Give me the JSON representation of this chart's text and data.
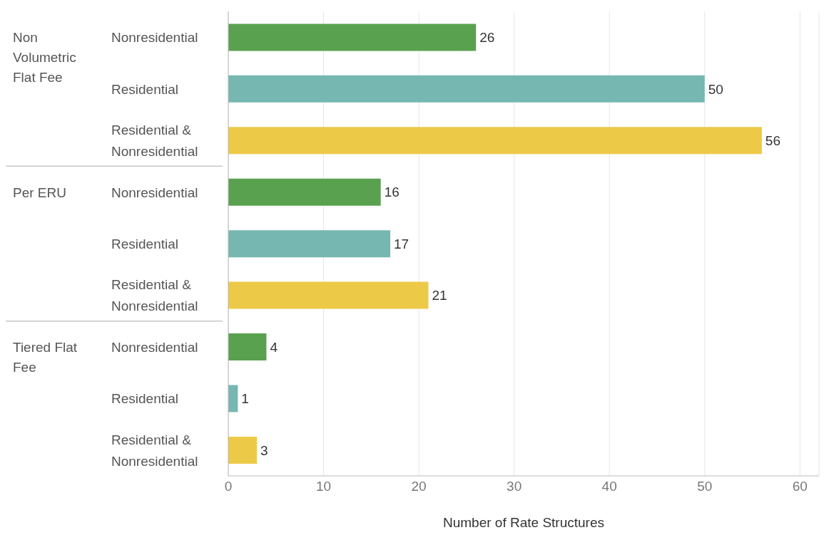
{
  "chart_data": {
    "type": "bar",
    "orientation": "horizontal",
    "categories": [
      "Nonresidential",
      "Residential",
      "Residential & Nonresidential",
      "Nonresidential",
      "Residential",
      "Residential & Nonresidential",
      "Nonresidential",
      "Residential",
      "Residential & Nonresidential"
    ],
    "values": [
      26,
      50,
      56,
      16,
      17,
      21,
      4,
      1,
      3
    ],
    "colors": [
      "#59a14f",
      "#76b7b2",
      "#edc948",
      "#59a14f",
      "#76b7b2",
      "#edc948",
      "#59a14f",
      "#76b7b2",
      "#edc948"
    ],
    "annotations": [
      "Non Volumetric Flat Fee",
      "Per ERU",
      "Tiered Flat Fee"
    ],
    "xlabel": "Number of Rate Structures",
    "xlim": [
      0,
      62
    ],
    "xticks": [
      0,
      10,
      20,
      30,
      40,
      50,
      60
    ],
    "grid": "x",
    "data_labels": true
  }
}
